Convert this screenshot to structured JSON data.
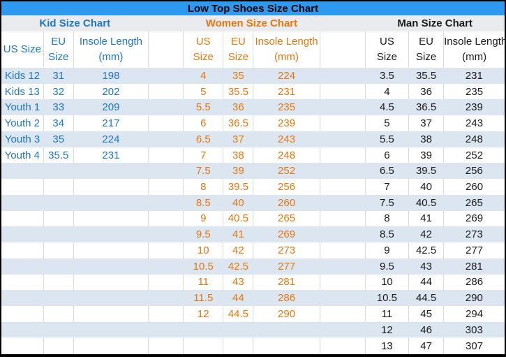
{
  "title": "Low Top Shoes Size Chart",
  "row_count": 18,
  "colors": {
    "title_bar": "#2E9AEF",
    "section_row_bg": "#E9EBEE",
    "row_stripe": "#DCE6F1",
    "gridline": "#D7DBDF",
    "kid_text": "#1E76C4",
    "women_text": "#E5770D",
    "man_text": "#1A1A1A",
    "outer_border": "#000000"
  },
  "sections": {
    "kid": {
      "title": "Kid Size Chart",
      "columns": {
        "us": "US Size",
        "eu": "EU\nSize",
        "insole": "Insole Length\n(mm)"
      },
      "rows": [
        [
          "Kids 12",
          "31",
          "198"
        ],
        [
          "Kids 13",
          "32",
          "202"
        ],
        [
          "Youth 1",
          "33",
          "209"
        ],
        [
          "Youth 2",
          "34",
          "217"
        ],
        [
          "Youth 3",
          "35",
          "224"
        ],
        [
          "Youth 4",
          "35.5",
          "231"
        ]
      ]
    },
    "women": {
      "title": "Women Size Chart",
      "columns": {
        "us": "US\nSize",
        "eu": "EU\nSize",
        "insole": "Insole Length\n(mm)"
      },
      "rows": [
        [
          "4",
          "35",
          "224"
        ],
        [
          "5",
          "35.5",
          "231"
        ],
        [
          "5.5",
          "36",
          "235"
        ],
        [
          "6",
          "36.5",
          "239"
        ],
        [
          "6.5",
          "37",
          "243"
        ],
        [
          "7",
          "38",
          "248"
        ],
        [
          "7.5",
          "39",
          "252"
        ],
        [
          "8",
          "39.5",
          "256"
        ],
        [
          "8.5",
          "40",
          "260"
        ],
        [
          "9",
          "40.5",
          "265"
        ],
        [
          "9.5",
          "41",
          "269"
        ],
        [
          "10",
          "42",
          "273"
        ],
        [
          "10.5",
          "42.5",
          "277"
        ],
        [
          "11",
          "43",
          "281"
        ],
        [
          "11.5",
          "44",
          "286"
        ],
        [
          "12",
          "44.5",
          "290"
        ]
      ]
    },
    "man": {
      "title": "Man Size Chart",
      "columns": {
        "us": "US\nSize",
        "eu": "EU\nSize",
        "insole": "Insole Length\n(mm)"
      },
      "rows": [
        [
          "3.5",
          "35.5",
          "231"
        ],
        [
          "4",
          "36",
          "235"
        ],
        [
          "4.5",
          "36.5",
          "239"
        ],
        [
          "5",
          "37",
          "243"
        ],
        [
          "5.5",
          "38",
          "248"
        ],
        [
          "6",
          "39",
          "252"
        ],
        [
          "6.5",
          "39.5",
          "256"
        ],
        [
          "7",
          "40",
          "260"
        ],
        [
          "7.5",
          "40.5",
          "265"
        ],
        [
          "8",
          "41",
          "269"
        ],
        [
          "8.5",
          "42",
          "273"
        ],
        [
          "9",
          "42.5",
          "277"
        ],
        [
          "9.5",
          "43",
          "281"
        ],
        [
          "10",
          "44",
          "286"
        ],
        [
          "10.5",
          "44.5",
          "290"
        ],
        [
          "11",
          "45",
          "294"
        ],
        [
          "12",
          "46",
          "303"
        ],
        [
          "13",
          "47",
          "307"
        ]
      ]
    }
  }
}
